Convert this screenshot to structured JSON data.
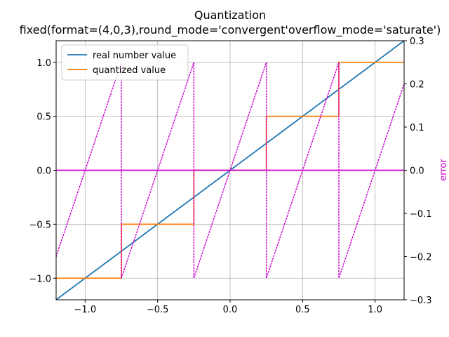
{
  "chart_data": {
    "type": "line",
    "title": "Quantization",
    "subtitle": "fixed(format=(4,0,3),round_mode='convergent'overflow_mode='saturate')",
    "xlabel": "",
    "ylabel": "",
    "y2label": "error",
    "xlim": [
      -1.2,
      1.2
    ],
    "ylim": [
      -1.2,
      1.2
    ],
    "y2lim": [
      -0.3,
      0.3
    ],
    "grid": true,
    "legend_position": "top-left",
    "x_ticks": [
      -1.0,
      -0.5,
      0.0,
      0.5,
      1.0
    ],
    "x_tick_labels": [
      "−1.0",
      "−0.5",
      "0.0",
      "0.5",
      "1.0"
    ],
    "y_ticks": [
      -1.0,
      -0.5,
      0.0,
      0.5,
      1.0
    ],
    "y_tick_labels": [
      "−1.0",
      "−0.5",
      "0.0",
      "0.5",
      "1.0"
    ],
    "y2_ticks": [
      -0.3,
      -0.2,
      -0.1,
      0.0,
      0.1,
      0.2,
      0.3
    ],
    "y2_tick_labels": [
      "−0.3",
      "−0.2",
      "−0.1",
      "0.0",
      "0.1",
      "0.2",
      "0.3"
    ],
    "series": [
      {
        "name": "real number value",
        "color": "#1f77b4",
        "style": "solid",
        "axis": "left",
        "x": [
          -1.2,
          1.2
        ],
        "y": [
          -1.2,
          1.2
        ]
      },
      {
        "name": "quantized value",
        "color": "#ff7f0e",
        "style": "solid",
        "axis": "left",
        "x": [
          -1.2,
          -0.75,
          -0.75,
          -0.25,
          -0.25,
          0.25,
          0.25,
          0.75,
          0.75,
          1.2
        ],
        "y": [
          -1.0,
          -1.0,
          -0.5,
          -0.5,
          0.0,
          0.0,
          0.5,
          0.5,
          1.0,
          1.0
        ]
      },
      {
        "name": "",
        "color": "#cc00cc",
        "style": "dotted",
        "axis": "right",
        "x": [
          -1.2,
          -0.75,
          -0.75,
          -0.25,
          -0.25,
          0.25,
          0.25,
          0.75,
          0.75,
          1.2
        ],
        "y": [
          -0.2,
          0.25,
          -0.25,
          0.25,
          -0.25,
          0.25,
          -0.25,
          0.25,
          -0.25,
          0.2
        ]
      },
      {
        "name": "",
        "color": "#cc00cc",
        "style": "solid",
        "axis": "right",
        "x": [
          -1.2,
          1.2
        ],
        "y": [
          0.0,
          0.0
        ]
      }
    ]
  }
}
